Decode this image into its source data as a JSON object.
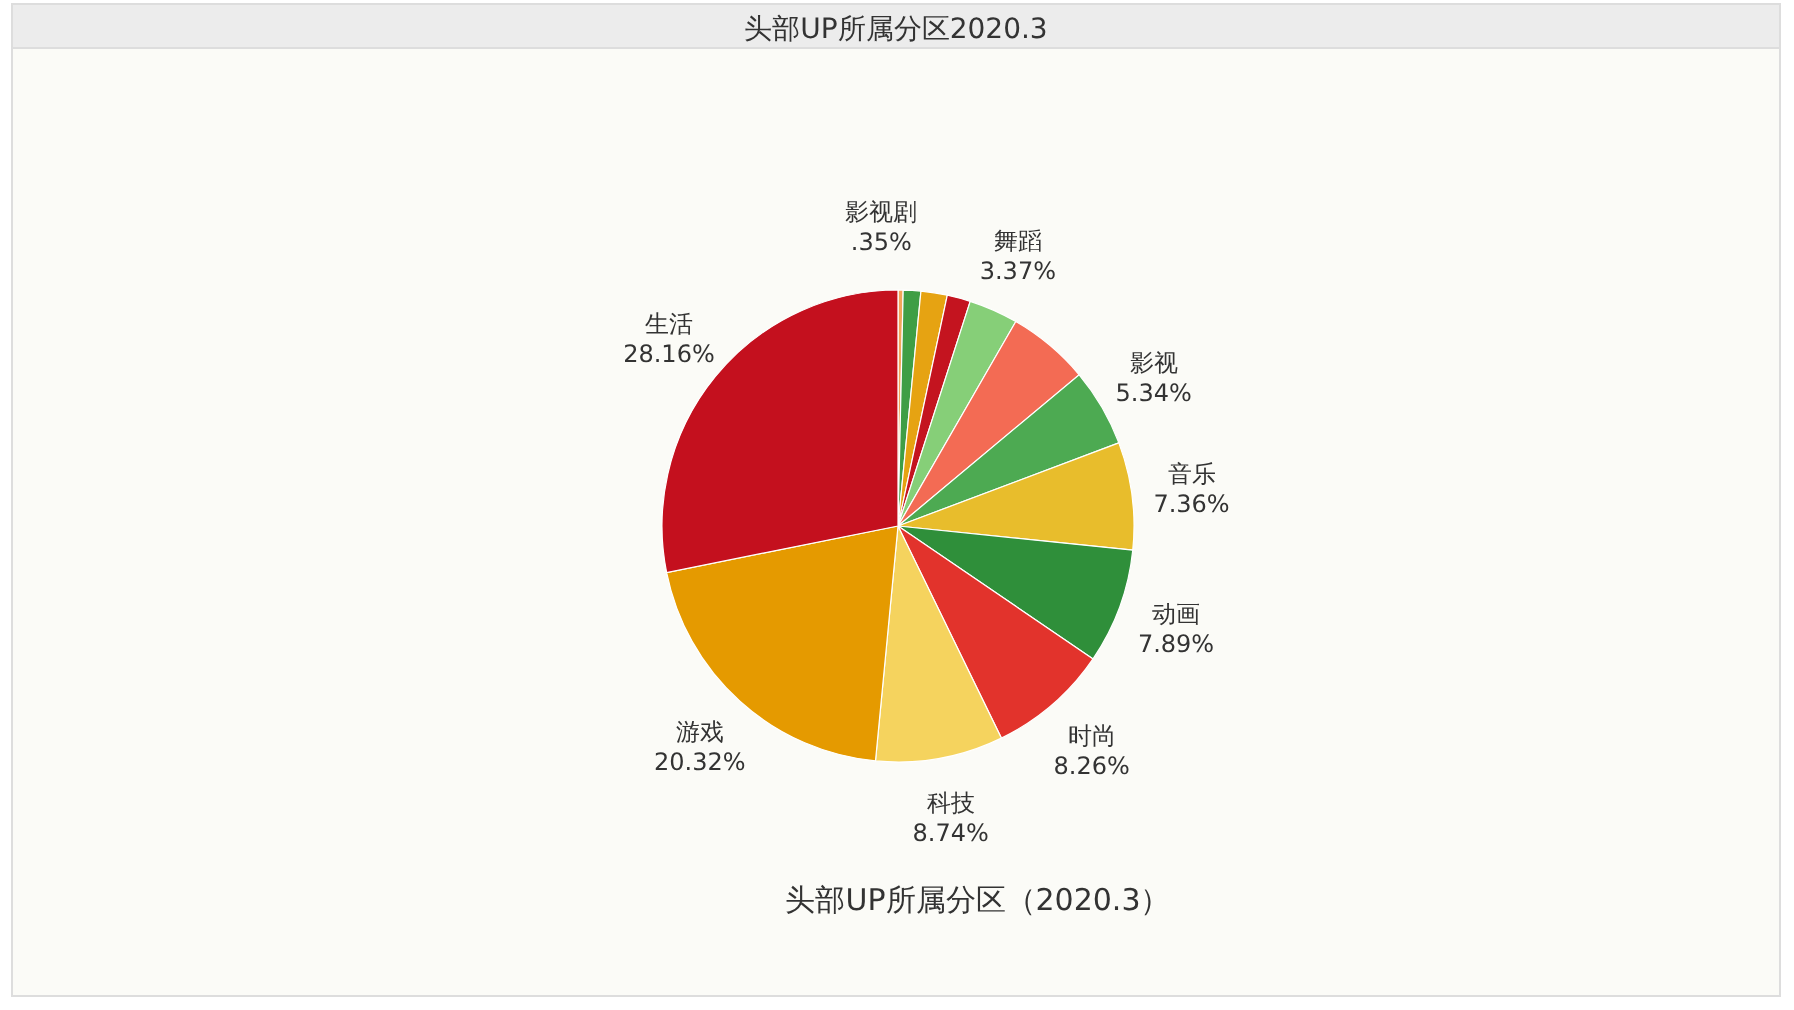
{
  "chart_data": {
    "type": "pie",
    "title": "头部UP所属分区2020.3",
    "categories": [
      "影视剧",
      null,
      null,
      null,
      "舞蹈",
      null,
      "影视",
      "音乐",
      "动画",
      "时尚",
      "科技",
      "游戏",
      "生活"
    ],
    "values": [
      0.35,
      1.2,
      1.8,
      1.6,
      3.37,
      5.61,
      5.34,
      7.36,
      7.89,
      8.26,
      8.74,
      20.32,
      28.16
    ],
    "value_labels": [
      ".35%",
      null,
      null,
      null,
      "3.37%",
      null,
      "5.34%",
      "7.36%",
      "7.89%",
      "8.26%",
      "8.74%",
      "20.32%",
      "28.16%"
    ],
    "colors": [
      "#f2a65a",
      "#3f9e45",
      "#e6a312",
      "#c4141f",
      "#86cf78",
      "#f36b54",
      "#4daa52",
      "#e8bd2c",
      "#2f8f3a",
      "#e2332c",
      "#f5d35e",
      "#e59a00",
      "#c4101e"
    ],
    "annotations": [
      "头部UP所属分区（2020.3）"
    ]
  }
}
